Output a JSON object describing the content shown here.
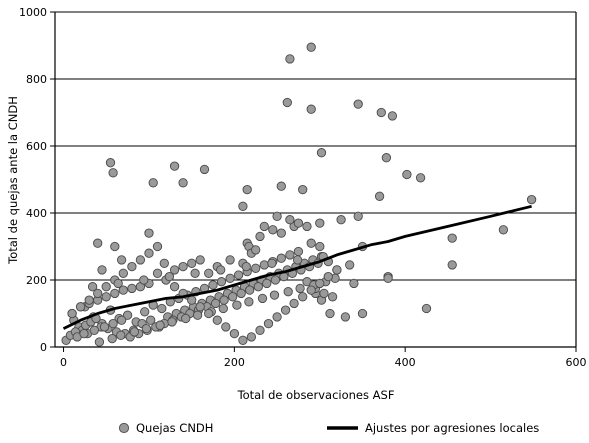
{
  "chart_data": {
    "type": "scatter",
    "xlabel": "Total de observaciones ASF",
    "ylabel": "Total de quejas ante la CNDH",
    "xlim": [
      -10,
      600
    ],
    "ylim": [
      0,
      1000
    ],
    "x_ticks": [
      "0",
      "200",
      "400",
      "600"
    ],
    "y_ticks": [
      "0",
      "200",
      "400",
      "600",
      "800",
      "1000"
    ],
    "grid": "horizontal",
    "legend_position": "bottom",
    "series": [
      {
        "name": "Quejas CNDH",
        "kind": "scatter",
        "color": "#9a9a9a",
        "x": [
          265,
          290,
          262,
          290,
          345,
          385,
          372,
          55,
          58,
          548,
          302,
          130,
          295,
          105,
          140,
          165,
          215,
          255,
          210,
          280,
          402,
          418,
          378,
          370,
          345,
          215,
          217,
          220,
          225,
          230,
          245,
          255,
          270,
          300,
          325,
          455,
          515,
          350,
          380,
          100,
          60,
          40,
          45,
          68,
          118,
          25,
          55,
          425,
          455,
          380,
          302,
          250,
          235,
          265,
          275,
          285,
          290,
          300,
          310,
          320,
          335,
          340,
          350,
          210,
          195,
          180,
          170,
          160,
          150,
          140,
          130,
          120,
          110,
          100,
          90,
          80,
          70,
          60,
          50,
          40,
          30,
          20,
          10,
          12,
          18,
          22,
          28,
          35,
          45,
          55,
          65,
          75,
          85,
          95,
          105,
          115,
          125,
          135,
          145,
          155,
          165,
          175,
          185,
          195,
          205,
          215,
          225,
          235,
          245,
          255,
          265,
          275,
          285,
          295,
          305,
          315,
          3,
          8,
          14,
          26,
          32,
          38,
          44,
          52,
          62,
          72,
          82,
          92,
          102,
          112,
          122,
          132,
          142,
          152,
          162,
          172,
          182,
          192,
          202,
          212,
          222,
          232,
          242,
          252,
          262,
          272,
          282,
          292,
          302,
          312,
          330,
          16,
          24,
          36,
          48,
          58,
          68,
          78,
          88,
          98,
          108,
          118,
          128,
          138,
          148,
          158,
          168,
          178,
          188,
          198,
          208,
          218,
          228,
          238,
          248,
          258,
          268,
          278,
          288,
          298,
          42,
          57,
          67,
          83,
          97,
          113,
          127,
          143,
          157,
          173,
          187,
          203,
          217,
          233,
          247,
          263,
          277,
          293,
          307,
          318,
          10,
          20,
          30,
          40,
          50,
          60,
          70,
          80,
          90,
          100,
          110,
          120,
          130,
          140,
          150,
          160,
          170,
          180,
          190,
          200,
          210,
          220,
          230,
          240,
          250,
          260,
          270,
          280,
          290,
          300,
          310,
          320,
          34,
          64,
          94,
          124,
          154,
          184,
          214,
          244,
          274,
          304
        ],
        "y": [
          860,
          895,
          730,
          710,
          725,
          690,
          700,
          550,
          520,
          440,
          580,
          540,
          160,
          490,
          490,
          530,
          470,
          480,
          420,
          470,
          515,
          505,
          565,
          450,
          390,
          310,
          300,
          280,
          290,
          330,
          350,
          340,
          360,
          370,
          380,
          325,
          350,
          300,
          210,
          340,
          300,
          310,
          230,
          260,
          250,
          120,
          110,
          115,
          245,
          205,
          140,
          390,
          360,
          380,
          370,
          360,
          310,
          300,
          255,
          230,
          245,
          190,
          100,
          250,
          260,
          240,
          220,
          260,
          250,
          240,
          230,
          200,
          220,
          190,
          180,
          175,
          170,
          160,
          150,
          140,
          130,
          120,
          100,
          80,
          60,
          50,
          40,
          90,
          70,
          110,
          85,
          95,
          75,
          105,
          125,
          115,
          135,
          145,
          155,
          165,
          175,
          185,
          195,
          205,
          215,
          225,
          235,
          245,
          255,
          265,
          275,
          285,
          195,
          175,
          160,
          150,
          20,
          35,
          45,
          65,
          75,
          85,
          60,
          55,
          45,
          40,
          50,
          70,
          80,
          60,
          90,
          100,
          110,
          120,
          130,
          140,
          150,
          160,
          170,
          180,
          190,
          200,
          210,
          220,
          230,
          240,
          250,
          260,
          270,
          100,
          90,
          30,
          40,
          50,
          60,
          70,
          80,
          30,
          40,
          50,
          60,
          70,
          80,
          90,
          100,
          110,
          120,
          130,
          140,
          150,
          160,
          170,
          180,
          190,
          200,
          210,
          220,
          230,
          240,
          250,
          15,
          25,
          35,
          45,
          55,
          65,
          75,
          85,
          95,
          105,
          115,
          125,
          135,
          145,
          155,
          165,
          175,
          185,
          195,
          205,
          100,
          120,
          140,
          160,
          180,
          200,
          220,
          240,
          260,
          280,
          300,
          200,
          180,
          160,
          140,
          120,
          100,
          80,
          60,
          40,
          20,
          30,
          50,
          70,
          90,
          110,
          130,
          150,
          170,
          190,
          210,
          230,
          180,
          190,
          200,
          210,
          220,
          230,
          240,
          250,
          260,
          270
        ]
      },
      {
        "name": "Ajustes por agresiones locales",
        "kind": "line",
        "color": "#000000",
        "x": [
          0,
          20,
          40,
          60,
          80,
          100,
          120,
          140,
          160,
          180,
          200,
          220,
          240,
          260,
          280,
          300,
          320,
          340,
          360,
          380,
          400,
          450,
          500,
          548
        ],
        "y": [
          55,
          80,
          100,
          115,
          125,
          135,
          145,
          150,
          160,
          170,
          185,
          200,
          215,
          225,
          240,
          255,
          275,
          290,
          305,
          315,
          330,
          360,
          390,
          420
        ]
      }
    ],
    "legend": [
      {
        "label": "Quejas CNDH",
        "marker": "circle"
      },
      {
        "label": "Ajustes por agresiones locales",
        "marker": "line"
      }
    ]
  }
}
